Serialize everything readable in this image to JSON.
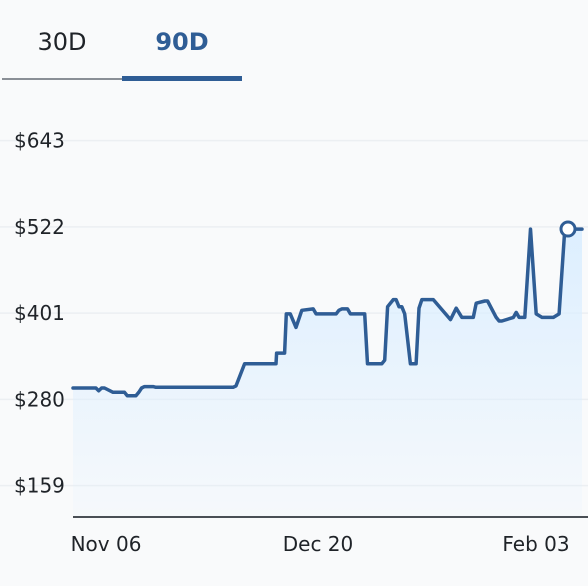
{
  "tabs": [
    {
      "label": "30D",
      "active": false
    },
    {
      "label": "90D",
      "active": true
    }
  ],
  "colors": {
    "accent": "#2f5d95",
    "line": "#2f5d95",
    "fill_top": "#dbeeff",
    "grid": "#eceff2",
    "axis": "#4a4f55"
  },
  "chart_data": {
    "type": "area",
    "x_tick_labels": [
      "Nov 06",
      "Dec 20",
      "Feb 03"
    ],
    "y_tick_labels": [
      "$643",
      "$522",
      "$401",
      "$280",
      "$159"
    ],
    "y_ticks": [
      643,
      522,
      401,
      280,
      159
    ],
    "ylim": [
      115,
      672
    ],
    "xlim": [
      0,
      89
    ],
    "grid": true,
    "series": [
      {
        "x": [
          0,
          4,
          4.5,
          5,
          5.5,
          7,
          9,
          9.5,
          11,
          11.5,
          12,
          12.5,
          14,
          14.5,
          28,
          28.5,
          30,
          35.5,
          35.6,
          37,
          37.3,
          38,
          39,
          40,
          42,
          42.5,
          46,
          46.5,
          47,
          48,
          48.5,
          51,
          51.5,
          54,
          54.5,
          55,
          56,
          56.5,
          57,
          57.5,
          58,
          59,
          60,
          60.5,
          61,
          63,
          66,
          67,
          68,
          70,
          70.5,
          72,
          72.5,
          74,
          74.5,
          75,
          77,
          77.5,
          78,
          79,
          80,
          81,
          82,
          84,
          85,
          86,
          87,
          89
        ],
        "y": [
          296,
          296,
          292,
          296,
          296,
          290,
          290,
          285,
          285,
          290,
          296,
          298,
          298,
          297,
          297,
          299,
          330,
          330,
          345,
          345,
          400,
          400,
          381,
          405,
          407,
          400,
          400,
          405,
          407,
          407,
          400,
          400,
          330,
          330,
          335,
          410,
          420,
          420,
          410,
          410,
          400,
          330,
          330,
          408,
          420,
          420,
          392,
          408,
          395,
          395,
          415,
          418,
          418,
          395,
          390,
          390,
          395,
          402,
          395,
          395,
          519,
          400,
          395,
          395,
          400,
          519,
          519,
          519
        ]
      }
    ]
  }
}
